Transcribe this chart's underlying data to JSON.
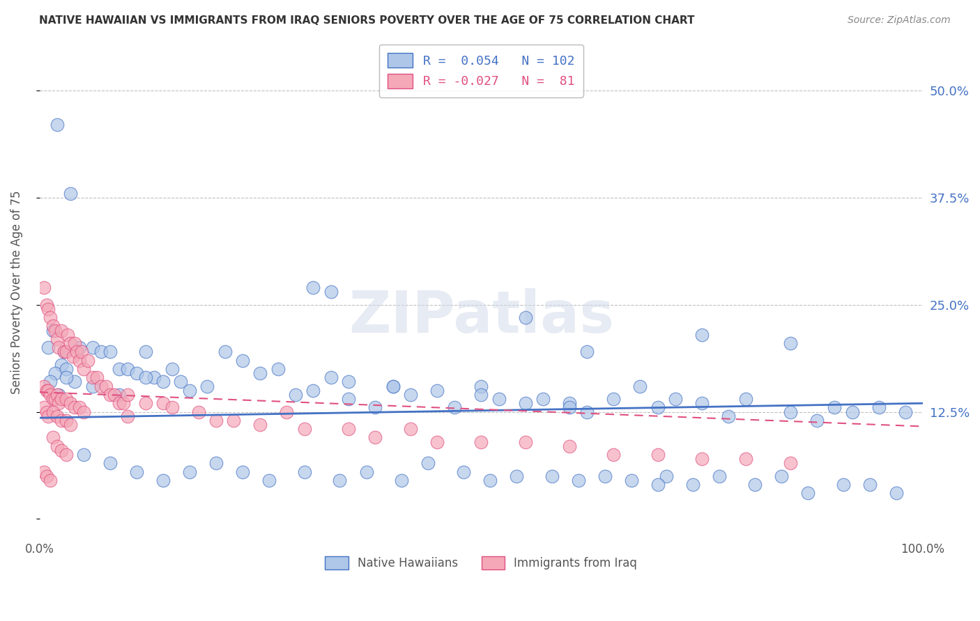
{
  "title": "NATIVE HAWAIIAN VS IMMIGRANTS FROM IRAQ SENIORS POVERTY OVER THE AGE OF 75 CORRELATION CHART",
  "source": "Source: ZipAtlas.com",
  "ylabel": "Seniors Poverty Over the Age of 75",
  "xlim": [
    0.0,
    1.0
  ],
  "ylim": [
    -0.02,
    0.55
  ],
  "yticks": [
    0.0,
    0.125,
    0.25,
    0.375,
    0.5
  ],
  "yticklabels": [
    "",
    "12.5%",
    "25.0%",
    "37.5%",
    "50.0%"
  ],
  "xticks": [
    0.0,
    1.0
  ],
  "xticklabels": [
    "0.0%",
    "100.0%"
  ],
  "legend1_label": "Native Hawaiians",
  "legend2_label": "Immigrants from Iraq",
  "r1": 0.054,
  "n1": 102,
  "r2": -0.027,
  "n2": 81,
  "color1": "#aec6e8",
  "color2": "#f4a8b8",
  "line1_color": "#4472c4",
  "line2_color": "#e05080",
  "background_color": "#ffffff",
  "grid_color": "#c0c0c0",
  "title_color": "#333333",
  "source_color": "#888888",
  "axis_label_color": "#555555",
  "tick_color_right": "#4472c4",
  "blue_line_start": 0.118,
  "blue_line_end": 0.135,
  "pink_line_start": 0.148,
  "pink_line_end": 0.108,
  "scatter1_x": [
    0.02,
    0.035,
    0.015,
    0.01,
    0.025,
    0.018,
    0.012,
    0.022,
    0.03,
    0.045,
    0.04,
    0.028,
    0.06,
    0.07,
    0.08,
    0.09,
    0.1,
    0.11,
    0.12,
    0.13,
    0.14,
    0.15,
    0.16,
    0.17,
    0.19,
    0.21,
    0.23,
    0.25,
    0.27,
    0.29,
    0.31,
    0.33,
    0.35,
    0.38,
    0.4,
    0.42,
    0.45,
    0.47,
    0.5,
    0.52,
    0.55,
    0.57,
    0.6,
    0.62,
    0.65,
    0.68,
    0.7,
    0.72,
    0.75,
    0.78,
    0.8,
    0.85,
    0.88,
    0.9,
    0.92,
    0.95,
    0.98,
    0.05,
    0.08,
    0.11,
    0.14,
    0.17,
    0.2,
    0.23,
    0.26,
    0.3,
    0.34,
    0.37,
    0.41,
    0.44,
    0.48,
    0.51,
    0.54,
    0.58,
    0.61,
    0.64,
    0.67,
    0.71,
    0.74,
    0.77,
    0.81,
    0.84,
    0.87,
    0.91,
    0.94,
    0.97,
    0.31,
    0.33,
    0.03,
    0.06,
    0.09,
    0.12,
    0.55,
    0.75,
    0.85,
    0.62,
    0.35,
    0.4,
    0.5,
    0.6,
    0.7
  ],
  "scatter1_y": [
    0.46,
    0.38,
    0.22,
    0.2,
    0.18,
    0.17,
    0.16,
    0.145,
    0.175,
    0.2,
    0.16,
    0.195,
    0.2,
    0.195,
    0.195,
    0.175,
    0.175,
    0.17,
    0.195,
    0.165,
    0.16,
    0.175,
    0.16,
    0.15,
    0.155,
    0.195,
    0.185,
    0.17,
    0.175,
    0.145,
    0.15,
    0.165,
    0.14,
    0.13,
    0.155,
    0.145,
    0.15,
    0.13,
    0.155,
    0.14,
    0.135,
    0.14,
    0.135,
    0.125,
    0.14,
    0.155,
    0.13,
    0.14,
    0.135,
    0.12,
    0.14,
    0.125,
    0.115,
    0.13,
    0.125,
    0.13,
    0.125,
    0.075,
    0.065,
    0.055,
    0.045,
    0.055,
    0.065,
    0.055,
    0.045,
    0.055,
    0.045,
    0.055,
    0.045,
    0.065,
    0.055,
    0.045,
    0.05,
    0.05,
    0.045,
    0.05,
    0.045,
    0.05,
    0.04,
    0.05,
    0.04,
    0.05,
    0.03,
    0.04,
    0.04,
    0.03,
    0.27,
    0.265,
    0.165,
    0.155,
    0.145,
    0.165,
    0.235,
    0.215,
    0.205,
    0.195,
    0.16,
    0.155,
    0.145,
    0.13,
    0.04
  ],
  "scatter2_x": [
    0.005,
    0.008,
    0.01,
    0.012,
    0.015,
    0.018,
    0.02,
    0.022,
    0.025,
    0.028,
    0.03,
    0.032,
    0.035,
    0.038,
    0.04,
    0.042,
    0.045,
    0.048,
    0.05,
    0.055,
    0.06,
    0.065,
    0.07,
    0.075,
    0.08,
    0.085,
    0.09,
    0.095,
    0.005,
    0.008,
    0.01,
    0.012,
    0.015,
    0.018,
    0.02,
    0.022,
    0.025,
    0.03,
    0.035,
    0.04,
    0.045,
    0.05,
    0.005,
    0.008,
    0.01,
    0.015,
    0.02,
    0.025,
    0.03,
    0.035,
    0.1,
    0.12,
    0.14,
    0.18,
    0.22,
    0.28,
    0.35,
    0.42,
    0.5,
    0.55,
    0.6,
    0.65,
    0.7,
    0.75,
    0.8,
    0.85,
    0.1,
    0.15,
    0.2,
    0.25,
    0.3,
    0.38,
    0.45,
    0.015,
    0.02,
    0.025,
    0.03,
    0.005,
    0.008,
    0.012
  ],
  "scatter2_y": [
    0.27,
    0.25,
    0.245,
    0.235,
    0.225,
    0.22,
    0.21,
    0.2,
    0.22,
    0.195,
    0.195,
    0.215,
    0.205,
    0.19,
    0.205,
    0.195,
    0.185,
    0.195,
    0.175,
    0.185,
    0.165,
    0.165,
    0.155,
    0.155,
    0.145,
    0.145,
    0.135,
    0.135,
    0.155,
    0.15,
    0.15,
    0.145,
    0.14,
    0.14,
    0.145,
    0.135,
    0.14,
    0.14,
    0.135,
    0.13,
    0.13,
    0.125,
    0.13,
    0.125,
    0.12,
    0.125,
    0.12,
    0.115,
    0.115,
    0.11,
    0.145,
    0.135,
    0.135,
    0.125,
    0.115,
    0.125,
    0.105,
    0.105,
    0.09,
    0.09,
    0.085,
    0.075,
    0.075,
    0.07,
    0.07,
    0.065,
    0.12,
    0.13,
    0.115,
    0.11,
    0.105,
    0.095,
    0.09,
    0.095,
    0.085,
    0.08,
    0.075,
    0.055,
    0.05,
    0.045
  ]
}
